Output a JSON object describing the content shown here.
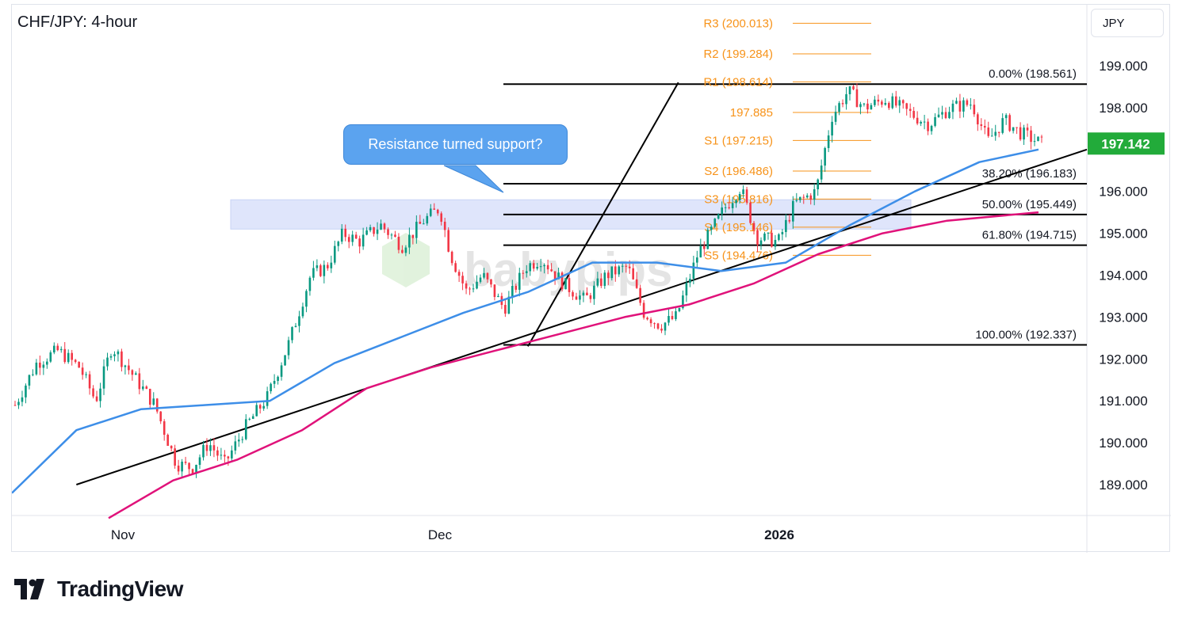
{
  "header": {
    "title": "CHF/JPY: 4-hour"
  },
  "currency_button": "JPY",
  "callout": "Resistance turned support?",
  "watermark": "babypips",
  "brand": {
    "name": "TradingView"
  },
  "colors": {
    "ma_fast": "#3d8ee8",
    "ma_slow": "#e0127a",
    "pivot": "#f7931a",
    "last_price_bg": "#22ab3a",
    "zone": "#dfe5fb",
    "trend": "#000000",
    "up_candle": "#089981",
    "down_candle": "#f23645"
  },
  "chart_data": {
    "type": "candlestick",
    "title": "CHF/JPY: 4-hour",
    "y_axis": {
      "unit": "JPY",
      "ticks": [
        "199.000",
        "198.000",
        "197.000",
        "196.000",
        "195.000",
        "194.000",
        "193.000",
        "192.000",
        "191.000",
        "190.000",
        "189.000"
      ],
      "last_price": "197.142"
    },
    "x_axis": {
      "ticks": [
        "Nov",
        "Dec",
        "2026"
      ]
    },
    "fibonacci": [
      {
        "label": "0.00% (198.561)",
        "price": 198.561
      },
      {
        "label": "38.20% (196.183)",
        "price": 196.183
      },
      {
        "label": "50.00% (195.449)",
        "price": 195.449
      },
      {
        "label": "61.80% (194.715)",
        "price": 194.715
      },
      {
        "label": "100.00% (192.337)",
        "price": 192.337
      }
    ],
    "pivots": [
      {
        "label": "R3 (200.013)",
        "price": 200.013
      },
      {
        "label": "R2 (199.284)",
        "price": 199.284
      },
      {
        "label": "R1 (198.614)",
        "price": 198.614
      },
      {
        "label": "197.885",
        "price": 197.885
      },
      {
        "label": "S1 (197.215)",
        "price": 197.215
      },
      {
        "label": "S2 (196.486)",
        "price": 196.486
      },
      {
        "label": "S3 (195.816)",
        "price": 195.816
      },
      {
        "label": "S4 (195.146)",
        "price": 195.146
      },
      {
        "label": "S5 (194.476)",
        "price": 194.476
      }
    ],
    "zone": {
      "from": 195.1,
      "to": 195.8
    },
    "close_path": [
      {
        "t": 0,
        "p": 190.9
      },
      {
        "t": 0.02,
        "p": 191.9
      },
      {
        "t": 0.04,
        "p": 192.2
      },
      {
        "t": 0.06,
        "p": 191.8
      },
      {
        "t": 0.075,
        "p": 191.0
      },
      {
        "t": 0.09,
        "p": 192.3
      },
      {
        "t": 0.11,
        "p": 191.6
      },
      {
        "t": 0.13,
        "p": 190.9
      },
      {
        "t": 0.15,
        "p": 189.5
      },
      {
        "t": 0.165,
        "p": 189.4
      },
      {
        "t": 0.18,
        "p": 190.0
      },
      {
        "t": 0.195,
        "p": 189.5
      },
      {
        "t": 0.215,
        "p": 190.4
      },
      {
        "t": 0.235,
        "p": 191.1
      },
      {
        "t": 0.255,
        "p": 192.4
      },
      {
        "t": 0.275,
        "p": 194.0
      },
      {
        "t": 0.29,
        "p": 194.2
      },
      {
        "t": 0.305,
        "p": 195.0
      },
      {
        "t": 0.32,
        "p": 194.8
      },
      {
        "t": 0.34,
        "p": 195.2
      },
      {
        "t": 0.36,
        "p": 194.7
      },
      {
        "t": 0.38,
        "p": 195.3
      },
      {
        "t": 0.395,
        "p": 195.6
      },
      {
        "t": 0.405,
        "p": 194.5
      },
      {
        "t": 0.42,
        "p": 193.6
      },
      {
        "t": 0.435,
        "p": 194.0
      },
      {
        "t": 0.455,
        "p": 193.2
      },
      {
        "t": 0.475,
        "p": 194.2
      },
      {
        "t": 0.49,
        "p": 194.4
      },
      {
        "t": 0.51,
        "p": 193.8
      },
      {
        "t": 0.53,
        "p": 193.4
      },
      {
        "t": 0.55,
        "p": 194.0
      },
      {
        "t": 0.57,
        "p": 194.2
      },
      {
        "t": 0.585,
        "p": 193.1
      },
      {
        "t": 0.6,
        "p": 192.8
      },
      {
        "t": 0.615,
        "p": 193.0
      },
      {
        "t": 0.635,
        "p": 194.5
      },
      {
        "t": 0.66,
        "p": 195.6
      },
      {
        "t": 0.675,
        "p": 196.1
      },
      {
        "t": 0.69,
        "p": 194.9
      },
      {
        "t": 0.71,
        "p": 194.8
      },
      {
        "t": 0.725,
        "p": 195.7
      },
      {
        "t": 0.745,
        "p": 196.0
      },
      {
        "t": 0.76,
        "p": 197.8
      },
      {
        "t": 0.775,
        "p": 198.4
      },
      {
        "t": 0.79,
        "p": 198.0
      },
      {
        "t": 0.81,
        "p": 198.2
      },
      {
        "t": 0.83,
        "p": 197.9
      },
      {
        "t": 0.85,
        "p": 197.6
      },
      {
        "t": 0.87,
        "p": 198.0
      },
      {
        "t": 0.89,
        "p": 198.1
      },
      {
        "t": 0.905,
        "p": 197.2
      },
      {
        "t": 0.92,
        "p": 197.7
      },
      {
        "t": 0.935,
        "p": 197.4
      },
      {
        "t": 0.955,
        "p": 197.142
      }
    ],
    "ma_fast_path": [
      {
        "t": 0,
        "p": 188.8
      },
      {
        "t": 0.06,
        "p": 190.3
      },
      {
        "t": 0.12,
        "p": 190.8
      },
      {
        "t": 0.18,
        "p": 190.9
      },
      {
        "t": 0.24,
        "p": 191.0
      },
      {
        "t": 0.3,
        "p": 191.9
      },
      {
        "t": 0.36,
        "p": 192.5
      },
      {
        "t": 0.42,
        "p": 193.1
      },
      {
        "t": 0.48,
        "p": 193.6
      },
      {
        "t": 0.54,
        "p": 194.3
      },
      {
        "t": 0.6,
        "p": 194.3
      },
      {
        "t": 0.66,
        "p": 194.1
      },
      {
        "t": 0.72,
        "p": 194.3
      },
      {
        "t": 0.78,
        "p": 195.2
      },
      {
        "t": 0.84,
        "p": 196.0
      },
      {
        "t": 0.9,
        "p": 196.7
      },
      {
        "t": 0.955,
        "p": 197.0
      }
    ],
    "ma_slow_path": [
      {
        "t": 0.09,
        "p": 188.2
      },
      {
        "t": 0.15,
        "p": 189.1
      },
      {
        "t": 0.21,
        "p": 189.6
      },
      {
        "t": 0.27,
        "p": 190.3
      },
      {
        "t": 0.33,
        "p": 191.3
      },
      {
        "t": 0.39,
        "p": 191.8
      },
      {
        "t": 0.45,
        "p": 192.2
      },
      {
        "t": 0.51,
        "p": 192.6
      },
      {
        "t": 0.57,
        "p": 193.0
      },
      {
        "t": 0.63,
        "p": 193.3
      },
      {
        "t": 0.69,
        "p": 193.8
      },
      {
        "t": 0.75,
        "p": 194.5
      },
      {
        "t": 0.81,
        "p": 195.0
      },
      {
        "t": 0.87,
        "p": 195.3
      },
      {
        "t": 0.955,
        "p": 195.5
      }
    ],
    "trendlines": [
      {
        "t1": 0.06,
        "p1": 189.0,
        "t2": 1.0,
        "p2": 197.0
      },
      {
        "t1": 0.48,
        "p1": 192.3,
        "t2": 0.62,
        "p2": 198.6
      }
    ]
  }
}
